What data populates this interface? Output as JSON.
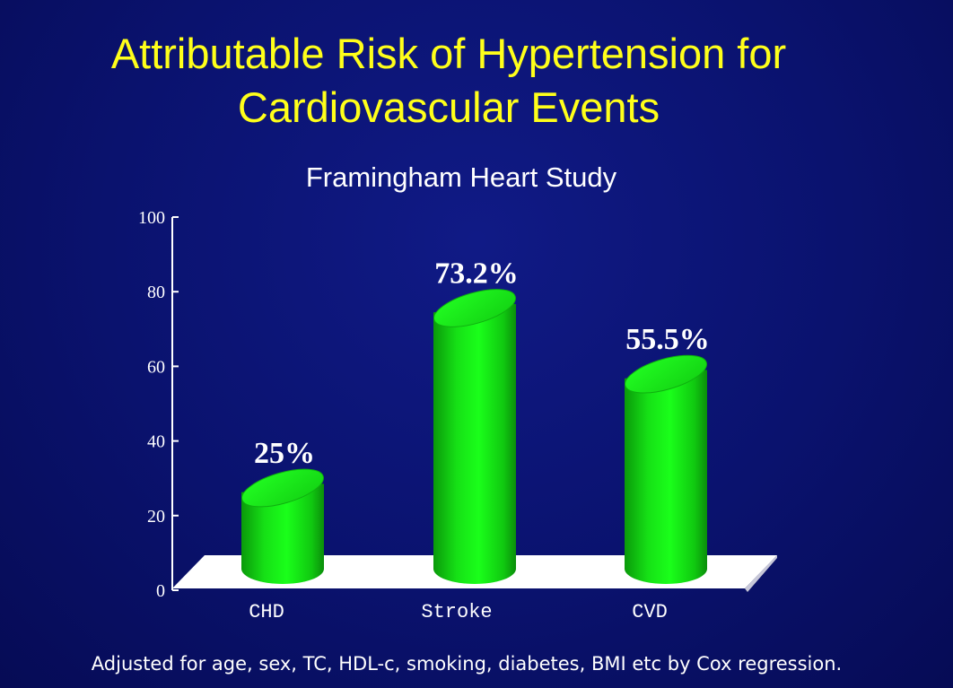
{
  "slide": {
    "title_line1": "Attributable Risk of Hypertension for",
    "title_line2": "Cardiovascular Events",
    "footnote": "Adjusted for age, sex, TC, HDL-c, smoking, diabetes, BMI etc by Cox regression."
  },
  "colors": {
    "background": "#0a126e",
    "title": "#ffff1a",
    "bar": "#1aff1a",
    "floor": "#ffffff"
  },
  "chart_data": {
    "type": "bar",
    "title": "Framingham Heart Study",
    "categories": [
      "CHD",
      "Stroke",
      "CVD"
    ],
    "values": [
      25,
      73.2,
      55.5
    ],
    "data_labels": [
      "25%",
      "73.2%",
      "55.5%"
    ],
    "yticks": [
      "0",
      "20",
      "40",
      "60",
      "80",
      "100"
    ],
    "ylim": [
      0,
      100
    ],
    "xlabel": "",
    "ylabel": "",
    "grid": false,
    "legend": "none",
    "style": "3d-cylinder"
  }
}
